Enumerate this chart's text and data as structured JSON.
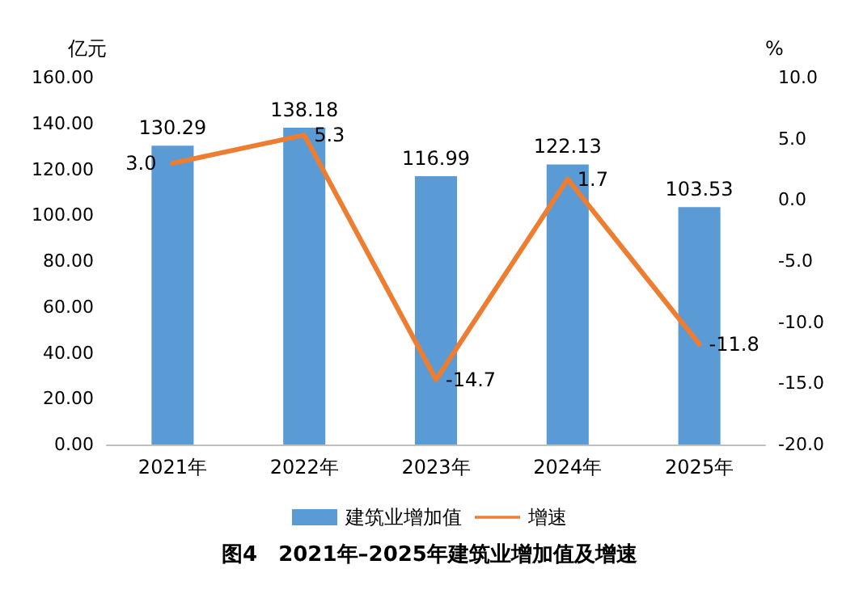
{
  "chart_data": {
    "type": "bar",
    "title": "图4　2021年–2025年建筑业增加值及增速",
    "ylabel": "亿元",
    "y2label": "%",
    "categories": [
      "2021年",
      "2022年",
      "2023年",
      "2024年",
      "2025年"
    ],
    "series": [
      {
        "name": "建筑业增加值",
        "color": "#5b9bd5",
        "values": [
          130.29,
          138.18,
          116.99,
          122.13,
          103.53
        ],
        "value_labels": [
          "130.29",
          "138.18",
          "116.99",
          "122.13",
          "103.53"
        ]
      },
      {
        "name": "增速",
        "type": "line",
        "axis": "y2",
        "color": "#ed7d31",
        "values": [
          3.0,
          5.3,
          -14.7,
          1.7,
          -11.8
        ],
        "value_labels": [
          "3.0",
          "5.3",
          "-14.7",
          "1.7",
          "-11.8"
        ]
      }
    ],
    "ylim": [
      0,
      160
    ],
    "yticks": [
      {
        "value": 0,
        "label": "0.00"
      },
      {
        "value": 20,
        "label": "20.00"
      },
      {
        "value": 40,
        "label": "40.00"
      },
      {
        "value": 60,
        "label": "60.00"
      },
      {
        "value": 80,
        "label": "80.00"
      },
      {
        "value": 100,
        "label": "100.00"
      },
      {
        "value": 120,
        "label": "120.00"
      },
      {
        "value": 140,
        "label": "140.00"
      },
      {
        "value": 160,
        "label": "160.00"
      }
    ],
    "y2lim": [
      -20,
      10
    ],
    "y2ticks": [
      {
        "value": -20,
        "label": "-20.0"
      },
      {
        "value": -15,
        "label": "-15.0"
      },
      {
        "value": -10,
        "label": "-10.0"
      },
      {
        "value": -5,
        "label": "-5.0"
      },
      {
        "value": 0,
        "label": "0.0"
      },
      {
        "value": 5,
        "label": "5.0"
      },
      {
        "value": 10,
        "label": "10.0"
      }
    ],
    "grid": false,
    "legend": "bottom",
    "marker": "none",
    "line_style": "solid"
  }
}
